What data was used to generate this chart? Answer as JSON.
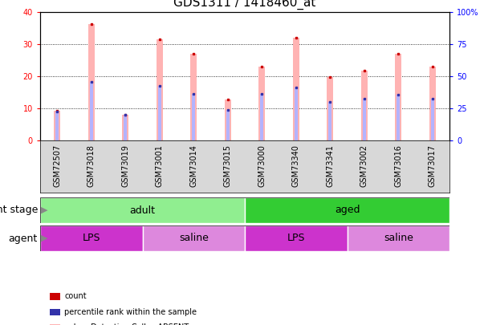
{
  "title": "GDS1311 / 1418460_at",
  "samples": [
    "GSM72507",
    "GSM73018",
    "GSM73019",
    "GSM73001",
    "GSM73014",
    "GSM73015",
    "GSM73000",
    "GSM73340",
    "GSM73341",
    "GSM73002",
    "GSM73016",
    "GSM73017"
  ],
  "count_values": [
    9.2,
    36.2,
    8.0,
    31.5,
    27.0,
    12.8,
    23.0,
    32.0,
    19.8,
    21.8,
    27.0,
    23.0
  ],
  "rank_values": [
    9.0,
    18.3,
    8.0,
    17.0,
    14.5,
    9.5,
    14.5,
    16.5,
    12.0,
    13.0,
    14.2,
    13.0
  ],
  "count_color": "#ffb3b3",
  "rank_color": "#b3b3ff",
  "count_dot_color": "#cc0000",
  "rank_dot_color": "#3333aa",
  "ylim_left": [
    0,
    40
  ],
  "ylim_right": [
    0,
    100
  ],
  "yticks_left": [
    0,
    10,
    20,
    30,
    40
  ],
  "yticks_right": [
    0,
    25,
    50,
    75,
    100
  ],
  "ytick_labels_right": [
    "0",
    "25",
    "50",
    "75",
    "100%"
  ],
  "bg_color": "#ffffff",
  "xtick_bg": "#d8d8d8",
  "adult_color": "#90ee90",
  "aged_color": "#33cc33",
  "lps_color": "#cc33cc",
  "saline_color": "#dd88dd",
  "grid_color": "#000000",
  "title_fontsize": 11,
  "tick_fontsize": 7,
  "label_fontsize": 9,
  "legend_fontsize": 7
}
